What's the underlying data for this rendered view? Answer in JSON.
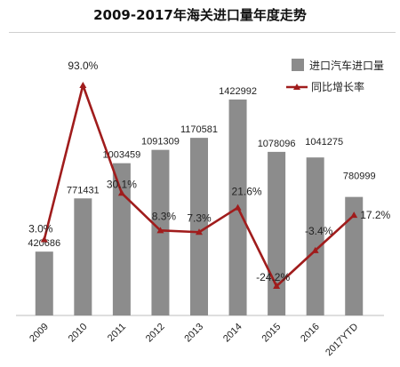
{
  "chart_data": {
    "type": "bar",
    "title": "2009-2017年海关进口量年度走势",
    "categories": [
      "2009",
      "2010",
      "2011",
      "2012",
      "2013",
      "2014",
      "2015",
      "2016",
      "2017YTD"
    ],
    "series": [
      {
        "name": "进口汽车进口量",
        "type": "bar",
        "axis": "left",
        "color": "#8c8c8c",
        "values": [
          420686,
          771431,
          1003459,
          1091309,
          1170581,
          1422992,
          1078096,
          1041275,
          780999
        ],
        "labels": [
          "420686",
          "771431",
          "1003459",
          "1091309",
          "1170581",
          "1422992",
          "1078096",
          "1041275",
          "780999"
        ]
      },
      {
        "name": "同比增长率",
        "type": "line",
        "axis": "right",
        "color": "#a01c1c",
        "values": [
          3.0,
          93.0,
          30.1,
          8.3,
          7.3,
          21.6,
          -24.2,
          -3.4,
          17.2
        ],
        "labels": [
          "3.0%",
          "93.0%",
          "30.1%",
          "8.3%",
          "7.3%",
          "21.6%",
          "-24.2%",
          "-3.4%",
          "17.2%"
        ]
      }
    ],
    "ylim_left": [
      0,
      1500000
    ],
    "ylim_right": [
      -35,
      100
    ],
    "legend_position": "top-right",
    "grid": false
  }
}
